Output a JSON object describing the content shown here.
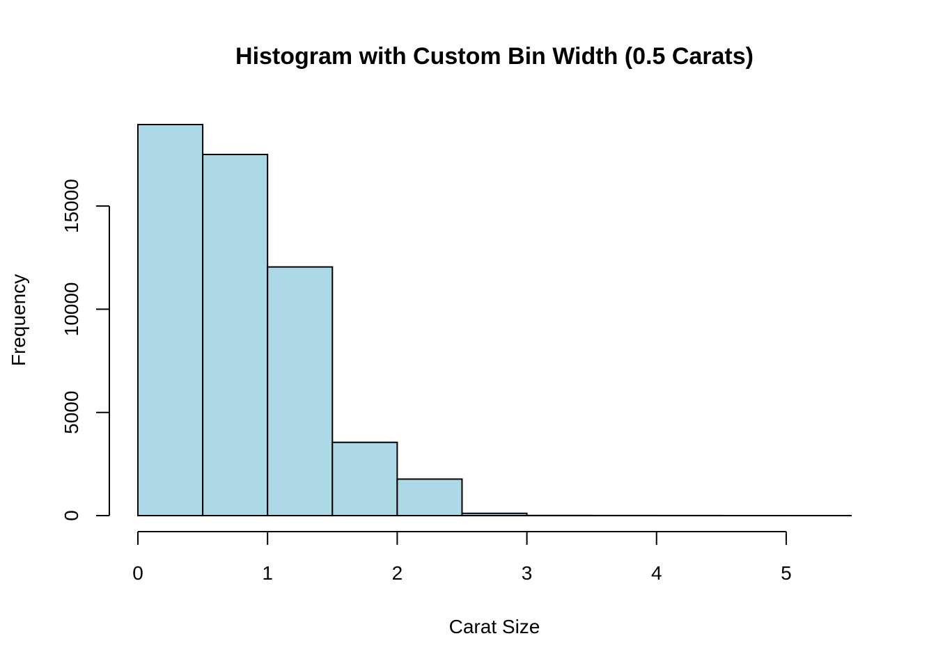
{
  "chart_data": {
    "type": "bar",
    "title": "Histogram with Custom Bin Width (0.5 Carats)",
    "xlabel": "Carat Size",
    "ylabel": "Frequency",
    "bin_width": 0.5,
    "bins": [
      {
        "start": 0.0,
        "end": 0.5,
        "count": 18950
      },
      {
        "start": 0.5,
        "end": 1.0,
        "count": 17500
      },
      {
        "start": 1.0,
        "end": 1.5,
        "count": 12050
      },
      {
        "start": 1.5,
        "end": 2.0,
        "count": 3550
      },
      {
        "start": 2.0,
        "end": 2.5,
        "count": 1770
      },
      {
        "start": 2.5,
        "end": 3.0,
        "count": 110
      },
      {
        "start": 3.0,
        "end": 3.5,
        "count": 8
      },
      {
        "start": 3.5,
        "end": 4.0,
        "count": 4
      },
      {
        "start": 4.0,
        "end": 4.5,
        "count": 3
      },
      {
        "start": 4.5,
        "end": 5.0,
        "count": 1
      },
      {
        "start": 5.0,
        "end": 5.5,
        "count": 1
      }
    ],
    "xlim": [
      0,
      5.5
    ],
    "ylim": [
      0,
      18950
    ],
    "x_ticks": [
      0,
      1,
      2,
      3,
      4,
      5
    ],
    "x_tick_labels": [
      "0",
      "1",
      "2",
      "3",
      "4",
      "5"
    ],
    "y_ticks": [
      0,
      5000,
      10000,
      15000
    ],
    "y_tick_labels": [
      "0",
      "5000",
      "10000",
      "15000"
    ],
    "bar_color": "#ADD8E6",
    "edge_color": "#000000",
    "grid": false,
    "legend": "none"
  }
}
